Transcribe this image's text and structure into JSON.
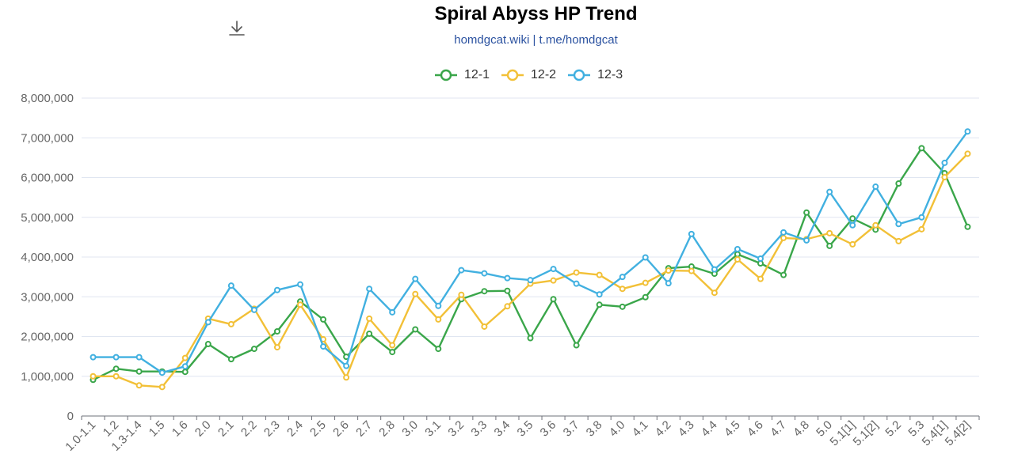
{
  "title": "Spiral Abyss HP Trend",
  "subtitle": "homdgcat.wiki | t.me/homdgcat",
  "toolbar": {
    "download_icon": "download-icon"
  },
  "chart_data": {
    "type": "line",
    "title": "Spiral Abyss HP Trend",
    "subtitle": "homdgcat.wiki | t.me/homdgcat",
    "xlabel": "",
    "ylabel": "",
    "ylim": [
      0,
      8000000
    ],
    "y_ticks": [
      "0",
      "1,000,000",
      "2,000,000",
      "3,000,000",
      "4,000,000",
      "5,000,000",
      "6,000,000",
      "7,000,000",
      "8,000,000"
    ],
    "grid": "horizontal",
    "legend": "top-center",
    "categories": [
      "1.0-1.1",
      "1.2",
      "1.3-1.4",
      "1.5",
      "1.6",
      "2.0",
      "2.1",
      "2.2",
      "2.3",
      "2.4",
      "2.5",
      "2.6",
      "2.7",
      "2.8",
      "3.0",
      "3.1",
      "3.2",
      "3.3",
      "3.4",
      "3.5",
      "3.6",
      "3.7",
      "3.8",
      "4.0",
      "4.1",
      "4.2",
      "4.3",
      "4.4",
      "4.5",
      "4.6",
      "4.7",
      "4.8",
      "5.0",
      "5.1[1]",
      "5.1[2]",
      "5.2",
      "5.3",
      "5.4[1]",
      "5.4[2]"
    ],
    "series": [
      {
        "name": "12-1",
        "color": "#3aa64a",
        "values": [
          910000,
          1190000,
          1120000,
          1120000,
          1110000,
          1810000,
          1430000,
          1690000,
          2130000,
          2880000,
          2430000,
          1490000,
          2070000,
          1610000,
          2180000,
          1690000,
          2940000,
          3140000,
          3150000,
          1960000,
          2940000,
          1780000,
          2800000,
          2750000,
          2990000,
          3720000,
          3760000,
          3580000,
          4070000,
          3840000,
          3550000,
          5120000,
          4280000,
          4970000,
          4690000,
          5850000,
          6740000,
          6110000,
          4760000
        ]
      },
      {
        "name": "12-2",
        "color": "#f2c037",
        "values": [
          1000000,
          1000000,
          770000,
          730000,
          1460000,
          2450000,
          2310000,
          2700000,
          1730000,
          2800000,
          1930000,
          970000,
          2450000,
          1780000,
          3070000,
          2430000,
          3050000,
          2250000,
          2760000,
          3330000,
          3410000,
          3610000,
          3550000,
          3200000,
          3350000,
          3660000,
          3650000,
          3100000,
          3940000,
          3450000,
          4480000,
          4450000,
          4600000,
          4320000,
          4800000,
          4400000,
          4700000,
          6010000,
          6600000
        ]
      },
      {
        "name": "12-3",
        "color": "#41b0e0",
        "values": [
          1480000,
          1480000,
          1480000,
          1090000,
          1250000,
          2360000,
          3280000,
          2670000,
          3170000,
          3310000,
          1750000,
          1260000,
          3200000,
          2610000,
          3450000,
          2770000,
          3670000,
          3590000,
          3470000,
          3420000,
          3700000,
          3330000,
          3060000,
          3500000,
          3990000,
          3340000,
          4580000,
          3690000,
          4200000,
          3960000,
          4620000,
          4420000,
          5640000,
          4800000,
          5770000,
          4830000,
          5000000,
          6370000,
          7160000
        ]
      }
    ]
  }
}
